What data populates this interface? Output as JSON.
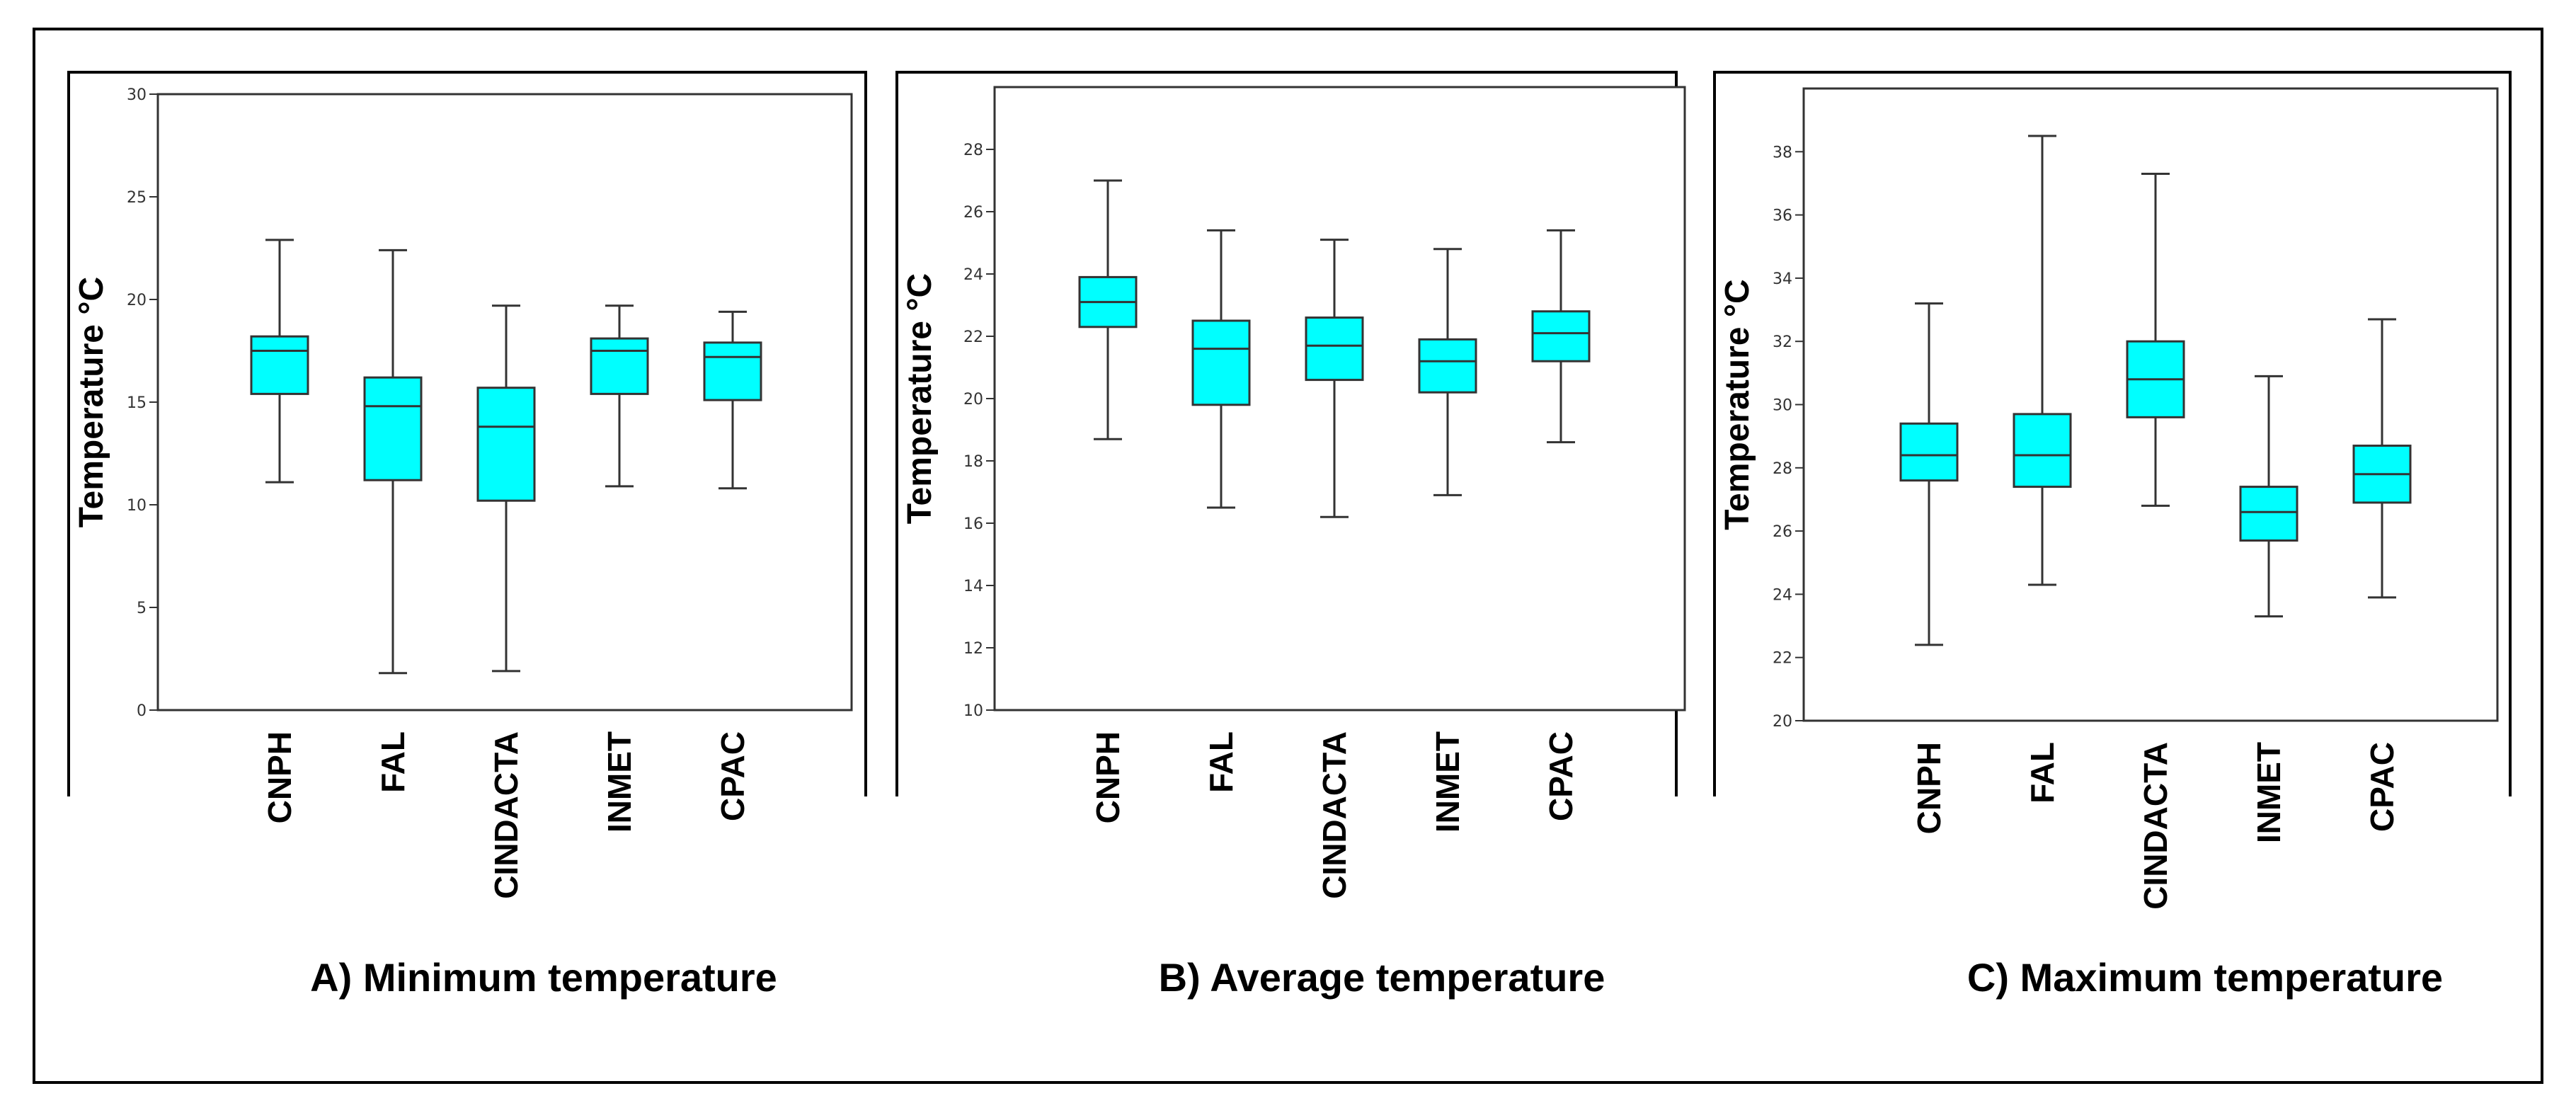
{
  "colors": {
    "box_fill": "#00FFFF",
    "stroke": "#333333",
    "frame": "#000000"
  },
  "chart_data": [
    {
      "type": "boxplot",
      "title": "A) Minimum temperature",
      "ylabel": "Temperature  °C",
      "xlabel": "",
      "ylim": [
        0,
        30
      ],
      "yticks": [
        0,
        5,
        10,
        15,
        20,
        25,
        30
      ],
      "ytick_labels": [
        "0",
        "5",
        "10",
        "15",
        "20",
        "25",
        "30"
      ],
      "categories": [
        "CNPH",
        "FAL",
        "CINDACTA",
        "INMET",
        "CPAC"
      ],
      "series": [
        {
          "name": "CNPH",
          "min": 11.1,
          "q1": 15.4,
          "median": 17.5,
          "q3": 18.2,
          "max": 22.9
        },
        {
          "name": "FAL",
          "min": 1.8,
          "q1": 11.2,
          "median": 14.8,
          "q3": 16.2,
          "max": 22.4
        },
        {
          "name": "CINDACTA",
          "min": 1.9,
          "q1": 10.2,
          "median": 13.8,
          "q3": 15.7,
          "max": 19.7
        },
        {
          "name": "INMET",
          "min": 10.9,
          "q1": 15.4,
          "median": 17.5,
          "q3": 18.1,
          "max": 19.7
        },
        {
          "name": "CPAC",
          "min": 10.8,
          "q1": 15.1,
          "median": 17.2,
          "q3": 17.9,
          "max": 19.4
        }
      ]
    },
    {
      "type": "boxplot",
      "title": "B) Average temperature",
      "ylabel": "Temperature  °C",
      "xlabel": "",
      "ylim": [
        10,
        30
      ],
      "yticks": [
        10,
        12,
        14,
        16,
        18,
        20,
        22,
        24,
        26,
        28
      ],
      "ytick_labels": [
        "10",
        "12",
        "14",
        "16",
        "18",
        "20",
        "22",
        "24",
        "26",
        "28"
      ],
      "categories": [
        "CNPH",
        "FAL",
        "CINDACTA",
        "INMET",
        "CPAC"
      ],
      "series": [
        {
          "name": "CNPH",
          "min": 18.7,
          "q1": 22.3,
          "median": 23.1,
          "q3": 23.9,
          "max": 27.0
        },
        {
          "name": "FAL",
          "min": 16.5,
          "q1": 19.8,
          "median": 21.6,
          "q3": 22.5,
          "max": 25.4
        },
        {
          "name": "CINDACTA",
          "min": 16.2,
          "q1": 20.6,
          "median": 21.7,
          "q3": 22.6,
          "max": 25.1
        },
        {
          "name": "INMET",
          "min": 16.9,
          "q1": 20.2,
          "median": 21.2,
          "q3": 21.9,
          "max": 24.8
        },
        {
          "name": "CPAC",
          "min": 18.6,
          "q1": 21.2,
          "median": 22.1,
          "q3": 22.8,
          "max": 25.4
        }
      ]
    },
    {
      "type": "boxplot",
      "title": "C) Maximum temperature",
      "ylabel": "Temperature  °C",
      "xlabel": "",
      "ylim": [
        20,
        40
      ],
      "yticks": [
        20,
        22,
        24,
        26,
        28,
        30,
        32,
        34,
        36,
        38
      ],
      "ytick_labels": [
        "20",
        "22",
        "24",
        "26",
        "28",
        "30",
        "32",
        "34",
        "36",
        "38"
      ],
      "categories": [
        "CNPH",
        "FAL",
        "CINDACTA",
        "INMET",
        "CPAC"
      ],
      "series": [
        {
          "name": "CNPH",
          "min": 22.4,
          "q1": 27.6,
          "median": 28.4,
          "q3": 29.4,
          "max": 33.2
        },
        {
          "name": "FAL",
          "min": 24.3,
          "q1": 27.4,
          "median": 28.4,
          "q3": 29.7,
          "max": 38.5
        },
        {
          "name": "CINDACTA",
          "min": 26.8,
          "q1": 29.6,
          "median": 30.8,
          "q3": 32.0,
          "max": 37.3
        },
        {
          "name": "INMET",
          "min": 23.3,
          "q1": 25.7,
          "median": 26.6,
          "q3": 27.4,
          "max": 30.9
        },
        {
          "name": "CPAC",
          "min": 23.9,
          "q1": 26.9,
          "median": 27.8,
          "q3": 28.7,
          "max": 32.7
        }
      ]
    }
  ]
}
